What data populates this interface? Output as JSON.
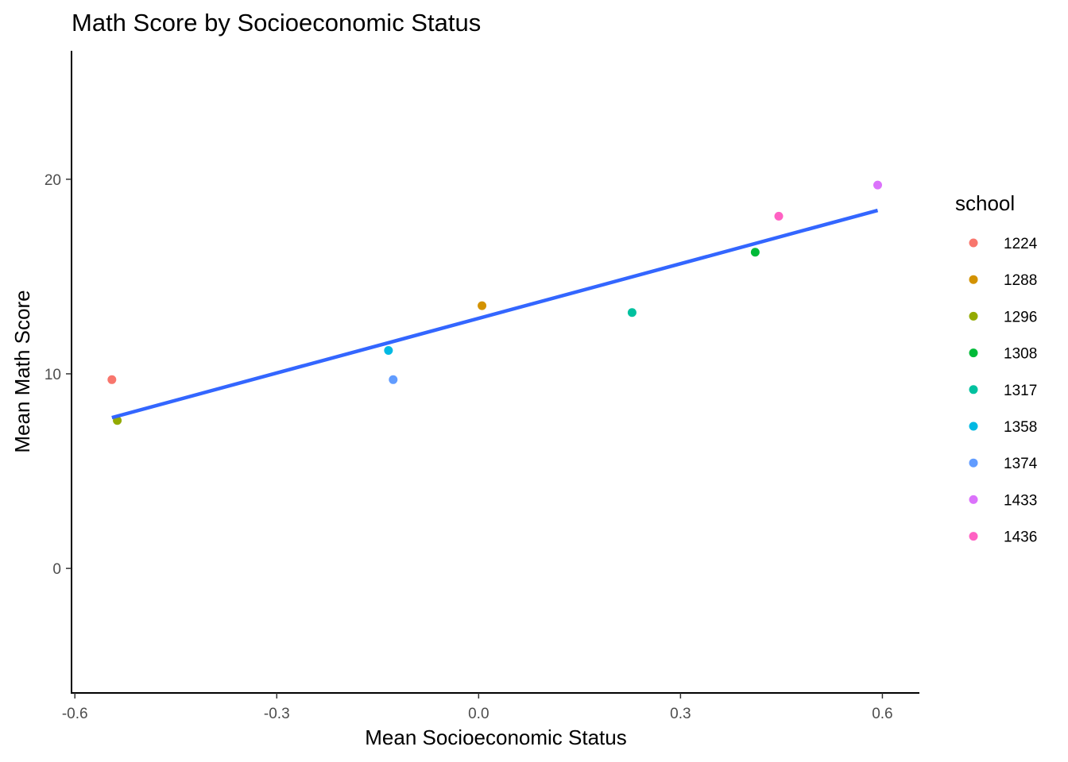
{
  "chart_data": {
    "type": "scatter",
    "title": "Math Score by Socioeconomic Status",
    "xlabel": "Mean Socioeconomic Status",
    "ylabel": "Mean Math Score",
    "xlim": [
      -0.605,
      0.655
    ],
    "ylim": [
      -6.4,
      26.6
    ],
    "xticks": [
      -0.6,
      -0.3,
      0.0,
      0.3,
      0.6
    ],
    "xtick_labels": [
      "-0.6",
      "-0.3",
      "0.0",
      "0.3",
      "0.6"
    ],
    "yticks": [
      0,
      10,
      20
    ],
    "ytick_labels": [
      "0",
      "10",
      "20"
    ],
    "grid": false,
    "legend": {
      "title": "school",
      "position": "right"
    },
    "series": [
      {
        "name": "1224",
        "color": "#F8766D",
        "x": -0.545,
        "y": 9.7
      },
      {
        "name": "1288",
        "color": "#D39200",
        "x": 0.005,
        "y": 13.5
      },
      {
        "name": "1296",
        "color": "#93AA00",
        "x": -0.537,
        "y": 7.6
      },
      {
        "name": "1308",
        "color": "#00BA38",
        "x": 0.411,
        "y": 16.25
      },
      {
        "name": "1317",
        "color": "#00C19F",
        "x": 0.228,
        "y": 13.15
      },
      {
        "name": "1358",
        "color": "#00B9E3",
        "x": -0.134,
        "y": 11.2
      },
      {
        "name": "1374",
        "color": "#619CFF",
        "x": -0.127,
        "y": 9.7
      },
      {
        "name": "1433",
        "color": "#DB72FB",
        "x": 0.593,
        "y": 19.7
      },
      {
        "name": "1436",
        "color": "#FF61C3",
        "x": 0.446,
        "y": 18.1
      }
    ],
    "trend_line": {
      "color": "#3366FF",
      "x": [
        -0.545,
        0.593
      ],
      "y": [
        7.75,
        18.4
      ]
    }
  }
}
